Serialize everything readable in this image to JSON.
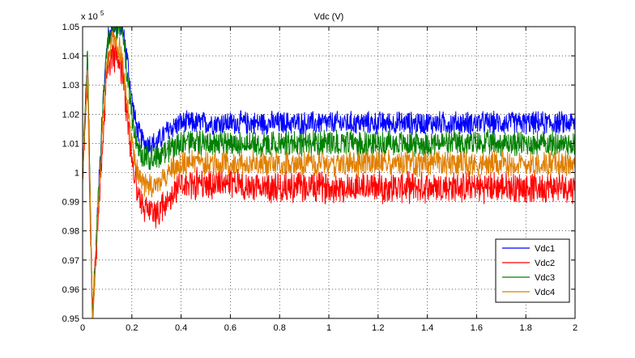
{
  "chart_data": {
    "type": "line",
    "title": "Vdc (V)",
    "exponent_label": {
      "prefix": "x 10",
      "power": "5"
    },
    "xlabel": "",
    "ylabel": "",
    "xlim": [
      0,
      2
    ],
    "ylim": [
      0.95,
      1.05
    ],
    "x_ticks": [
      "0",
      "0.2",
      "0.4",
      "0.6",
      "0.8",
      "1",
      "1.2",
      "1.4",
      "1.6",
      "1.8",
      "2"
    ],
    "y_ticks": [
      "0.95",
      "0.96",
      "0.97",
      "0.98",
      "0.99",
      "1",
      "1.01",
      "1.02",
      "1.03",
      "1.04",
      "1.05"
    ],
    "grid": true,
    "legend_position": "bottom-right",
    "x": [
      0,
      0.02,
      0.04,
      0.06,
      0.08,
      0.1,
      0.12,
      0.14,
      0.16,
      0.18,
      0.2,
      0.22,
      0.25,
      0.3,
      0.35,
      0.4,
      0.5,
      0.6,
      0.8,
      1.0,
      1.2,
      1.4,
      1.6,
      1.8,
      2.0
    ],
    "series": [
      {
        "name": "Vdc1",
        "color": "#0000ff",
        "values": [
          1.0,
          1.04,
          0.95,
          0.985,
          1.02,
          1.045,
          1.05,
          1.05,
          1.05,
          1.04,
          1.025,
          1.015,
          1.01,
          1.01,
          1.015,
          1.017,
          1.017,
          1.017,
          1.017,
          1.017,
          1.017,
          1.017,
          1.017,
          1.017,
          1.017
        ]
      },
      {
        "name": "Vdc2",
        "color": "#ff0000",
        "values": [
          1.0,
          1.03,
          0.95,
          0.98,
          1.01,
          1.035,
          1.04,
          1.04,
          1.035,
          1.02,
          1.005,
          0.995,
          0.988,
          0.986,
          0.99,
          0.996,
          0.996,
          0.996,
          0.995,
          0.995,
          0.995,
          0.995,
          0.995,
          0.995,
          0.995
        ]
      },
      {
        "name": "Vdc3",
        "color": "#008000",
        "values": [
          1.0,
          1.04,
          0.95,
          0.985,
          1.02,
          1.043,
          1.05,
          1.05,
          1.05,
          1.035,
          1.02,
          1.01,
          1.005,
          1.005,
          1.008,
          1.01,
          1.01,
          1.01,
          1.01,
          1.01,
          1.01,
          1.01,
          1.01,
          1.01,
          1.01
        ]
      },
      {
        "name": "Vdc4",
        "color": "#e07f00",
        "values": [
          1.0,
          1.035,
          0.95,
          0.982,
          1.015,
          1.04,
          1.045,
          1.045,
          1.04,
          1.025,
          1.01,
          1.0,
          0.996,
          0.996,
          1.0,
          1.003,
          1.003,
          1.003,
          1.003,
          1.003,
          1.003,
          1.003,
          1.003,
          1.003,
          1.003
        ]
      }
    ],
    "noise_amplitude": [
      0.0045,
      0.006,
      0.005,
      0.005
    ]
  }
}
